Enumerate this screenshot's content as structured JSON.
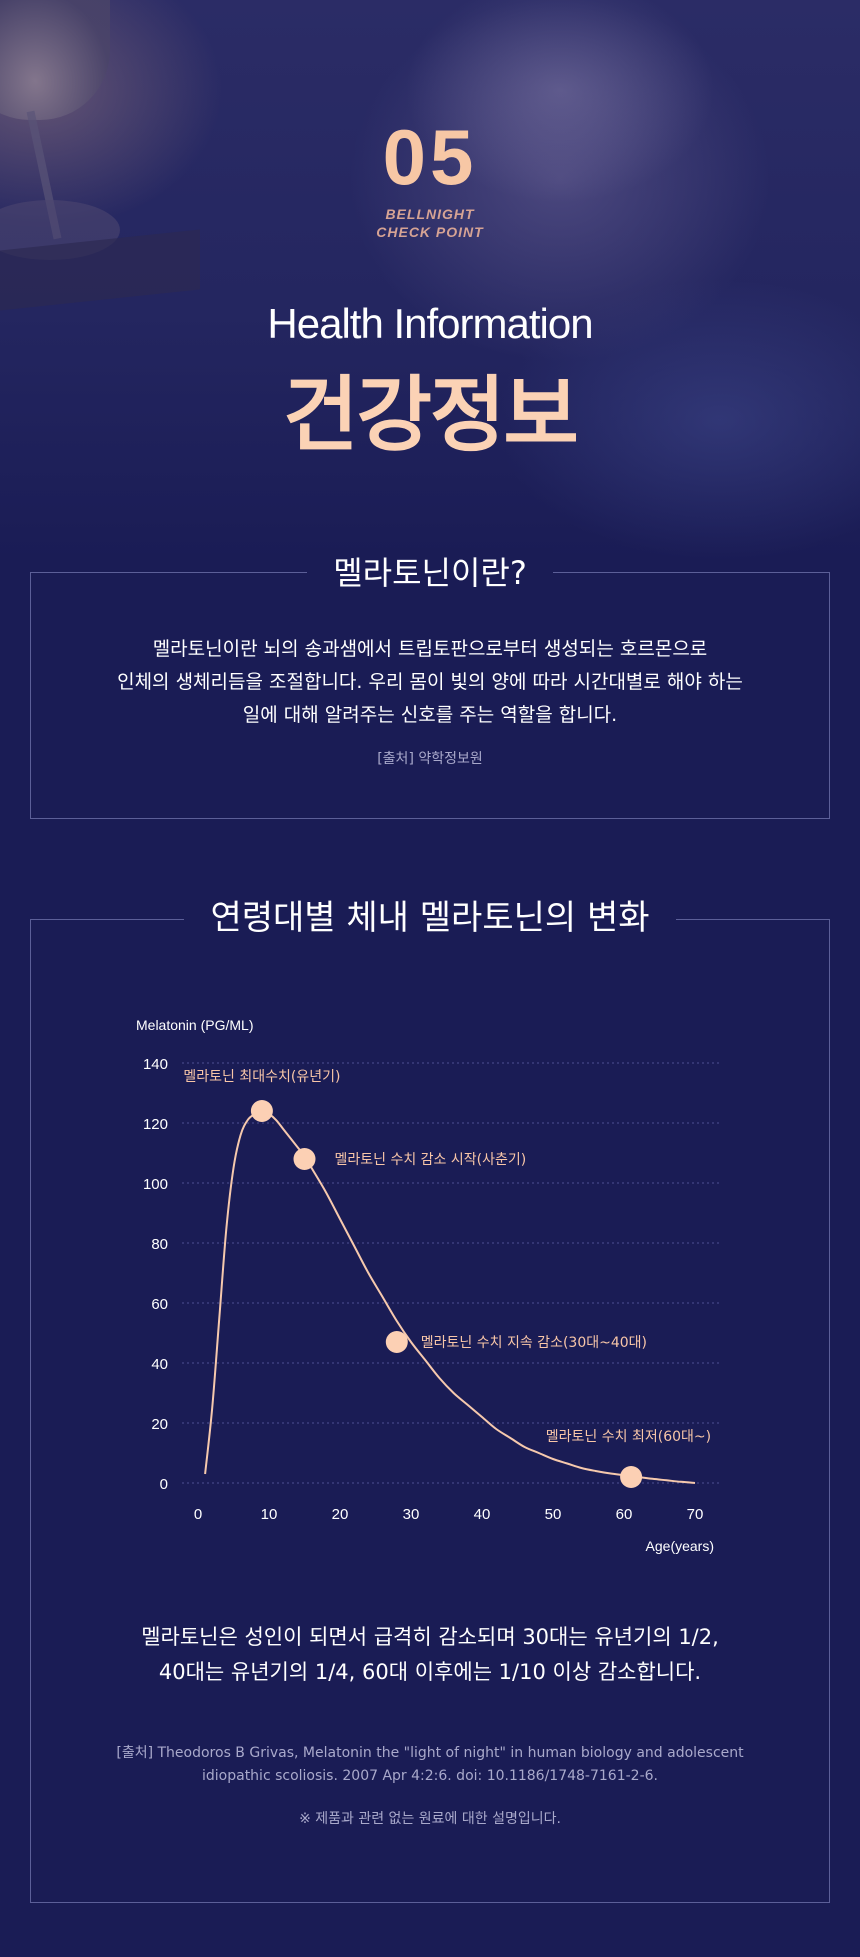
{
  "hero": {
    "number": "05",
    "check_line1": "BELLNIGHT",
    "check_line2": "CHECK POINT",
    "subtitle": "Health Information",
    "title": "건강정보"
  },
  "melatonin": {
    "heading": "멜라토닌이란?",
    "lines": [
      "멜라토닌이란 뇌의 송과샘에서 트립토판으로부터 생성되는 호르몬으로",
      "인체의 생체리듬을 조절합니다. 우리 몸이 빛의 양에 따라 시간대별로 해야 하는",
      "일에 대해 알려주는 신호를 주는 역할을 합니다."
    ],
    "source": "[출처] 약학정보원"
  },
  "age_section": {
    "heading": "연령대별 체내 멜라토닌의 변화",
    "description": [
      "멜라토닌은 성인이 되면서 급격히 감소되며 30대는 유년기의 1/2,",
      "40대는 유년기의 1/4, 60대 이후에는 1/10 이상 감소합니다."
    ],
    "source": [
      "[출처] Theodoros B Grivas, Melatonin the \"light of night\" in human biology and adolescent",
      "idiopathic scoliosis. 2007 Apr 4:2:6. doi: 10.1186/1748-7161-2-6."
    ],
    "note": "※ 제품과 관련 없는 원료에 대한 설명입니다."
  },
  "chart_data": {
    "type": "line",
    "ylabel": "Melatonin (PG/ML)",
    "xlabel": "Age(years)",
    "xlim": [
      0,
      70
    ],
    "ylim": [
      0,
      140
    ],
    "xticks": [
      0,
      10,
      20,
      30,
      40,
      50,
      60,
      70
    ],
    "yticks": [
      0,
      20,
      40,
      60,
      80,
      100,
      120,
      140
    ],
    "grid": "horizontal dotted",
    "line_color": "#f6c9ad",
    "series": [
      {
        "x": [
          1,
          2,
          3,
          4,
          5,
          6,
          7,
          8,
          9,
          10,
          11,
          12,
          13,
          14,
          15,
          16,
          18,
          20,
          22,
          24,
          26,
          28,
          30,
          32,
          34,
          36,
          38,
          40,
          42,
          44,
          46,
          48,
          50,
          52,
          54,
          56,
          58,
          60,
          62,
          64,
          66,
          68,
          70
        ],
        "y": [
          3,
          25,
          55,
          85,
          105,
          116,
          121,
          123,
          124,
          123,
          121,
          118,
          115,
          112,
          109,
          105,
          97,
          88,
          79,
          70,
          62,
          54,
          47,
          41,
          35,
          30,
          26,
          22,
          18,
          15,
          12,
          10,
          8,
          6.5,
          5,
          4,
          3.2,
          2.6,
          2,
          1.4,
          0.9,
          0.4,
          0
        ]
      }
    ],
    "annotations": [
      {
        "x": 9,
        "y": 124,
        "text": "멜라토닌 최대수치(유년기)"
      },
      {
        "x": 15,
        "y": 108,
        "text": "멜라토닌 수치 감소 시작(사춘기)"
      },
      {
        "x": 28,
        "y": 47,
        "text": "멜라토닌 수치 지속 감소(30대~40대)"
      },
      {
        "x": 61,
        "y": 2,
        "text": "멜라토닌 수치 최저(60대~)"
      }
    ]
  }
}
